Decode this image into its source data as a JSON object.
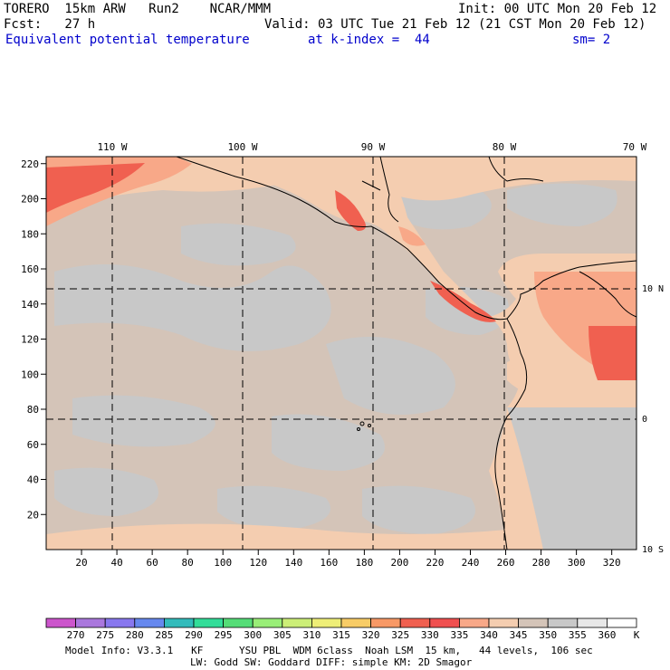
{
  "header": {
    "model": "TORERO  15km ARW   Run2    NCAR/MMM",
    "init": "Init: 00 UTC Mon 20 Feb 12",
    "fcst": "Fcst:   27 h",
    "valid": "Valid: 03 UTC Tue 21 Feb 12 (21 CST Mon 20 Feb 12)",
    "field": "Equivalent potential temperature",
    "level": "at k-index =  44",
    "smooth": "sm= 2"
  },
  "map": {
    "lon_labels": [
      "110 W",
      "100 W",
      "90 W",
      "80 W",
      "70 W"
    ],
    "lat_labels": [
      "10 N",
      "0",
      "10 S"
    ],
    "y_ticks": [
      "20",
      "40",
      "60",
      "80",
      "100",
      "120",
      "140",
      "160",
      "180",
      "200",
      "220"
    ],
    "x_ticks": [
      "20",
      "40",
      "60",
      "80",
      "100",
      "120",
      "140",
      "160",
      "180",
      "200",
      "220",
      "240",
      "260",
      "280",
      "300",
      "320"
    ],
    "background_color": "#d4c4b8",
    "land_colors": [
      "#c8c8c8",
      "#f4cdb0",
      "#f8a888",
      "#f06050"
    ]
  },
  "colorbar": {
    "labels": [
      "270",
      "275",
      "280",
      "285",
      "290",
      "295",
      "300",
      "305",
      "310",
      "315",
      "320",
      "325",
      "330",
      "335",
      "340",
      "345",
      "350",
      "355",
      "360"
    ],
    "unit": "K",
    "colors": [
      "#cc55cc",
      "#aa77dd",
      "#8877ee",
      "#6688ee",
      "#33bbbb",
      "#33dd99",
      "#55dd77",
      "#99ee77",
      "#ccee77",
      "#eeee77",
      "#f8cc66",
      "#f89966",
      "#f06050",
      "#f05050",
      "#f8a888",
      "#f4cdb0",
      "#d4c4b8",
      "#c8c8c8",
      "#e8e8e8",
      "#ffffff"
    ]
  },
  "footer": {
    "line1": "Model Info: V3.3.1   KF      YSU PBL  WDM 6class  Noah LSM  15 km,   44 levels,  106 sec",
    "line2": "LW: Godd SW: Goddard DIFF: simple KM: 2D Smagor"
  }
}
